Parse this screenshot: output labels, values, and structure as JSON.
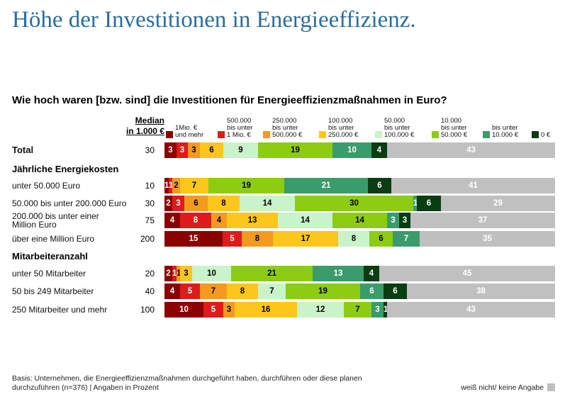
{
  "title": "Höhe der Investitionen in Energieeffizienz.",
  "question": "Wie hoch waren [bzw. sind] die Investitionen für Energieeffizienzmaßnahmen in Euro?",
  "median_header": {
    "line1": "Median",
    "line2": "in 1.000 €"
  },
  "footnote": {
    "basis": "Basis: Unternehmen, die Energieeffizienzmaßnahmen durchgeführt haben, durchführen oder diese planen durchzuführen  (n=376) | Angaben in Prozent",
    "na_label": "weiß nicht/ keine Angabe"
  },
  "chart_data": {
    "type": "bar",
    "orientation": "horizontal-stacked",
    "title": "Höhe der Investitionen in Energieeffizienz.",
    "unit": "Prozent",
    "series": [
      {
        "name": "1Mio. €\nund mehr",
        "color": "#8b0000",
        "text_color": "#ffffff"
      },
      {
        "name": "500.000\nbis unter\n1 Mio. €",
        "color": "#e01b1b",
        "text_color": "#ffffff"
      },
      {
        "name": "250.000\nbis unter\n500.000 €",
        "color": "#f39a1f",
        "text_color": "#000000"
      },
      {
        "name": "100.000\nbis unter\n250.000 €",
        "color": "#fdc61a",
        "text_color": "#000000"
      },
      {
        "name": "50.000\nbis unter\n100.000 €",
        "color": "#c9f3c9",
        "text_color": "#000000"
      },
      {
        "name": "10.000\nbis unter\n50.000 €",
        "color": "#8ccc12",
        "text_color": "#000000"
      },
      {
        "name": "bis unter\n10.000 €",
        "color": "#3a9b6b",
        "text_color": "#ffffff"
      },
      {
        "name": "0 €",
        "color": "#0a3d12",
        "text_color": "#ffffff"
      },
      {
        "name": "weiß nicht/ keine Angabe",
        "color": "#c0c0c0",
        "text_color": "#ffffff"
      }
    ],
    "groups": [
      {
        "label": null,
        "rows": [
          {
            "label": "Total",
            "bold": true,
            "median": "30",
            "values": [
              3,
              3,
              3,
              6,
              9,
              19,
              10,
              4,
              43
            ]
          }
        ]
      },
      {
        "label": "Jährliche Energiekosten",
        "rows": [
          {
            "label": "unter 50.000 Euro",
            "bold": false,
            "median": "10",
            "values": [
              1,
              1,
              2,
              7,
              0,
              19,
              21,
              6,
              41
            ],
            "labels": [
              "1",
              "1",
              "2",
              "7",
              "",
              "19",
              "21",
              "6",
              "41"
            ]
          },
          {
            "label": "50.000 bis unter 200.000 Euro",
            "bold": false,
            "median": "30",
            "values": [
              2,
              3,
              6,
              8,
              14,
              30,
              1,
              6,
              29
            ]
          },
          {
            "label": "200.000 bis unter einer\nMillion Euro",
            "bold": false,
            "median": "75",
            "values": [
              4,
              8,
              4,
              13,
              14,
              14,
              3,
              3,
              37
            ]
          },
          {
            "label": "über eine Million Euro",
            "bold": false,
            "median": "200",
            "values": [
              15,
              5,
              8,
              17,
              8,
              6,
              7,
              0,
              35
            ]
          }
        ]
      },
      {
        "label": "Mitarbeiteranzahl",
        "rows": [
          {
            "label": "unter 50 Mitarbeiter",
            "bold": false,
            "median": "20",
            "values": [
              2,
              1,
              1,
              3,
              10,
              21,
              13,
              4,
              45
            ]
          },
          {
            "label": "50 bis 249 Mitarbeiter",
            "bold": false,
            "median": "40",
            "values": [
              4,
              5,
              7,
              8,
              7,
              19,
              6,
              6,
              38
            ]
          },
          {
            "label": "250 Mitarbeiter und mehr",
            "bold": false,
            "median": "100",
            "values": [
              10,
              5,
              3,
              16,
              12,
              7,
              3,
              1,
              43
            ]
          }
        ]
      }
    ]
  }
}
